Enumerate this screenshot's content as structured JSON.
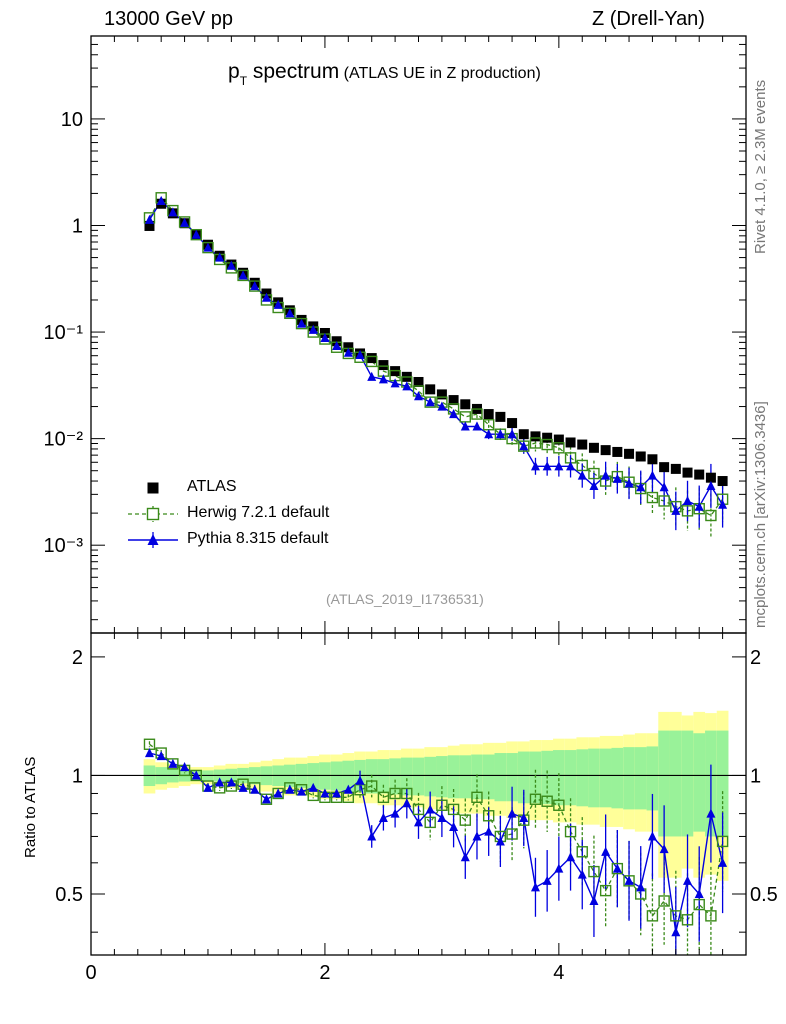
{
  "header": {
    "left": "13000 GeV pp",
    "right": "Z (Drell-Yan)"
  },
  "side_labels": {
    "rivet": "Rivet 4.1.0, ≥ 2.3M events",
    "mcplots": "mcplots.cern.ch [arXiv:1306.3436]"
  },
  "title": {
    "p": "p",
    "sub": "T",
    "main": " spectrum",
    "detail": " (ATLAS UE in Z production)"
  },
  "analysis_id": "(ATLAS_2019_I1736531)",
  "legend": {
    "atlas": "ATLAS",
    "herwig": "Herwig 7.2.1 default",
    "pythia": "Pythia 8.315 default"
  },
  "colors": {
    "atlas": "#000000",
    "herwig": "#3a8a1a",
    "pythia": "#0000e0",
    "band_inner": "#99f299",
    "band_outer": "#ffff99"
  },
  "chart_data": {
    "type": "line",
    "title": "pT spectrum (ATLAS UE in Z production)",
    "xlabel": "",
    "ylabel_ratio": "Ratio to ATLAS",
    "xlim": [
      0,
      5.6
    ],
    "ylim_main": [
      0.00015,
      60
    ],
    "ylim_ratio": [
      0.35,
      2.3
    ],
    "x_ticks": [
      "0",
      "2",
      "4"
    ],
    "y_ticks_main": [
      "10",
      "1",
      "10⁻¹",
      "10⁻²",
      "10⁻³"
    ],
    "y_ticks_ratio": [
      "2",
      "1",
      "0.5"
    ],
    "x": [
      0.5,
      0.6,
      0.7,
      0.8,
      0.9,
      1.0,
      1.1,
      1.2,
      1.3,
      1.4,
      1.5,
      1.6,
      1.7,
      1.8,
      1.9,
      2.0,
      2.1,
      2.2,
      2.3,
      2.4,
      2.5,
      2.6,
      2.7,
      2.8,
      2.9,
      3.0,
      3.1,
      3.2,
      3.3,
      3.4,
      3.5,
      3.6,
      3.7,
      3.8,
      3.9,
      4.0,
      4.1,
      4.2,
      4.3,
      4.4,
      4.5,
      4.6,
      4.7,
      4.8,
      4.9,
      5.0,
      5.1,
      5.2,
      5.3,
      5.4
    ],
    "series": [
      {
        "name": "ATLAS",
        "values": [
          0.99,
          1.6,
          1.3,
          1.05,
          0.82,
          0.66,
          0.52,
          0.43,
          0.36,
          0.29,
          0.23,
          0.19,
          0.16,
          0.13,
          0.113,
          0.098,
          0.082,
          0.072,
          0.063,
          0.057,
          0.049,
          0.043,
          0.038,
          0.034,
          0.029,
          0.026,
          0.023,
          0.021,
          0.019,
          0.017,
          0.016,
          0.014,
          0.011,
          0.0105,
          0.0102,
          0.0098,
          0.0092,
          0.0088,
          0.0082,
          0.0078,
          0.0075,
          0.0072,
          0.0068,
          0.0064,
          0.0054,
          0.0052,
          0.0048,
          0.0046,
          0.0043,
          0.004
        ]
      },
      {
        "name": "Herwig 7.2.1 default",
        "values": [
          1.18,
          1.82,
          1.38,
          1.08,
          0.82,
          0.62,
          0.48,
          0.4,
          0.34,
          0.27,
          0.2,
          0.17,
          0.15,
          0.12,
          0.1,
          0.086,
          0.072,
          0.063,
          0.058,
          0.053,
          0.043,
          0.039,
          0.034,
          0.028,
          0.022,
          0.022,
          0.019,
          0.016,
          0.017,
          0.0135,
          0.011,
          0.01,
          0.0085,
          0.0091,
          0.0088,
          0.0082,
          0.0066,
          0.0056,
          0.0047,
          0.004,
          0.0044,
          0.0039,
          0.0034,
          0.0028,
          0.0026,
          0.0023,
          0.0021,
          0.0022,
          0.0019,
          0.0027
        ]
      },
      {
        "name": "Pythia 8.315 default",
        "values": [
          1.13,
          1.7,
          1.33,
          1.06,
          0.82,
          0.62,
          0.5,
          0.42,
          0.34,
          0.27,
          0.21,
          0.18,
          0.15,
          0.12,
          0.105,
          0.088,
          0.074,
          0.064,
          0.061,
          0.038,
          0.036,
          0.033,
          0.031,
          0.025,
          0.022,
          0.02,
          0.017,
          0.013,
          0.013,
          0.011,
          0.011,
          0.011,
          0.0085,
          0.0055,
          0.0055,
          0.0055,
          0.0055,
          0.0045,
          0.0036,
          0.0045,
          0.0042,
          0.0038,
          0.0035,
          0.0045,
          0.0035,
          0.0021,
          0.0026,
          0.0023,
          0.0036,
          0.0024
        ]
      }
    ],
    "ratio_series": [
      {
        "name": "Herwig 7.2.1 default",
        "values": [
          1.2,
          1.14,
          1.07,
          1.03,
          1.0,
          0.94,
          0.93,
          0.94,
          0.95,
          0.93,
          0.87,
          0.9,
          0.93,
          0.92,
          0.89,
          0.88,
          0.88,
          0.88,
          0.92,
          0.94,
          0.88,
          0.9,
          0.9,
          0.82,
          0.76,
          0.84,
          0.82,
          0.77,
          0.88,
          0.79,
          0.7,
          0.71,
          0.77,
          0.87,
          0.86,
          0.84,
          0.72,
          0.64,
          0.57,
          0.51,
          0.58,
          0.54,
          0.5,
          0.44,
          0.48,
          0.44,
          0.43,
          0.47,
          0.44,
          0.68
        ]
      },
      {
        "name": "Pythia 8.315 default",
        "values": [
          1.14,
          1.12,
          1.07,
          1.05,
          1.0,
          0.93,
          0.96,
          0.96,
          0.93,
          0.92,
          0.87,
          0.9,
          0.92,
          0.91,
          0.93,
          0.9,
          0.9,
          0.92,
          0.97,
          0.7,
          0.78,
          0.8,
          0.85,
          0.76,
          0.82,
          0.78,
          0.74,
          0.62,
          0.7,
          0.72,
          0.68,
          0.8,
          0.78,
          0.52,
          0.54,
          0.58,
          0.62,
          0.56,
          0.48,
          0.64,
          0.58,
          0.54,
          0.52,
          0.7,
          0.65,
          0.4,
          0.54,
          0.5,
          0.8,
          0.6
        ]
      }
    ],
    "uncertainty_band": {
      "inner_half_width": [
        0.06,
        0.05,
        0.04,
        0.035,
        0.03,
        0.03,
        0.035,
        0.04,
        0.045,
        0.05,
        0.055,
        0.06,
        0.065,
        0.07,
        0.075,
        0.08,
        0.085,
        0.09,
        0.095,
        0.1,
        0.1,
        0.105,
        0.11,
        0.11,
        0.115,
        0.12,
        0.125,
        0.125,
        0.13,
        0.13,
        0.14,
        0.14,
        0.15,
        0.15,
        0.155,
        0.16,
        0.16,
        0.165,
        0.17,
        0.17,
        0.175,
        0.18,
        0.18,
        0.185,
        0.3,
        0.3,
        0.3,
        0.28,
        0.3,
        0.3
      ],
      "outer_half_width": [
        0.1,
        0.08,
        0.07,
        0.06,
        0.05,
        0.05,
        0.06,
        0.07,
        0.07,
        0.08,
        0.09,
        0.1,
        0.11,
        0.11,
        0.12,
        0.13,
        0.13,
        0.14,
        0.15,
        0.15,
        0.16,
        0.16,
        0.17,
        0.17,
        0.18,
        0.18,
        0.19,
        0.2,
        0.2,
        0.21,
        0.21,
        0.22,
        0.22,
        0.23,
        0.23,
        0.24,
        0.24,
        0.25,
        0.25,
        0.26,
        0.26,
        0.27,
        0.28,
        0.28,
        0.45,
        0.45,
        0.42,
        0.45,
        0.44,
        0.46
      ]
    },
    "legend_position": "middle-left"
  }
}
